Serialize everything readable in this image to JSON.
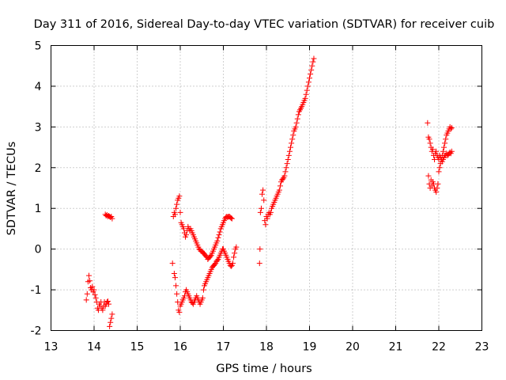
{
  "chart_data": {
    "type": "scatter",
    "title": "Day 311 of 2016, Sidereal Day-to-day VTEC variation (SDTVAR) for receiver cuib",
    "xlabel": "GPS time / hours",
    "ylabel": "SDTVAR / TECUs",
    "xlim": [
      13,
      23
    ],
    "ylim": [
      -2,
      5
    ],
    "xticks": [
      "13",
      "14",
      "15",
      "16",
      "17",
      "18",
      "19",
      "20",
      "21",
      "22",
      "23"
    ],
    "yticks": [
      "-2",
      "-1",
      "0",
      "1",
      "2",
      "3",
      "4",
      "5"
    ],
    "grid": true,
    "marker": "+",
    "series": [
      {
        "name": "SDTVAR",
        "color": "#ff0000",
        "points": [
          [
            13.82,
            -1.25
          ],
          [
            13.84,
            -1.1
          ],
          [
            13.86,
            -0.8
          ],
          [
            13.88,
            -0.65
          ],
          [
            13.9,
            -0.78
          ],
          [
            13.92,
            -0.95
          ],
          [
            13.94,
            -1.0
          ],
          [
            13.96,
            -0.92
          ],
          [
            13.98,
            -1.05
          ],
          [
            14.0,
            -1.0
          ],
          [
            14.02,
            -1.12
          ],
          [
            14.04,
            -1.2
          ],
          [
            14.06,
            -1.3
          ],
          [
            14.08,
            -1.45
          ],
          [
            14.1,
            -1.5
          ],
          [
            14.12,
            -1.35
          ],
          [
            14.14,
            -1.4
          ],
          [
            14.16,
            -1.3
          ],
          [
            14.18,
            -1.45
          ],
          [
            14.2,
            -1.5
          ],
          [
            14.22,
            -1.4
          ],
          [
            14.24,
            -1.3
          ],
          [
            14.26,
            -1.4
          ],
          [
            14.28,
            -1.35
          ],
          [
            14.3,
            -1.3
          ],
          [
            14.32,
            -1.28
          ],
          [
            14.34,
            -1.35
          ],
          [
            14.36,
            -1.9
          ],
          [
            14.38,
            -1.8
          ],
          [
            14.4,
            -1.7
          ],
          [
            14.42,
            -1.6
          ],
          [
            14.26,
            0.85
          ],
          [
            14.28,
            0.82
          ],
          [
            14.3,
            0.84
          ],
          [
            14.32,
            0.8
          ],
          [
            14.34,
            0.82
          ],
          [
            14.36,
            0.8
          ],
          [
            14.38,
            0.78
          ],
          [
            14.4,
            0.8
          ],
          [
            14.42,
            0.75
          ],
          [
            15.82,
            -0.35
          ],
          [
            15.84,
            0.8
          ],
          [
            15.86,
            0.9
          ],
          [
            15.88,
            0.85
          ],
          [
            15.9,
            1.0
          ],
          [
            15.92,
            1.1
          ],
          [
            15.94,
            1.2
          ],
          [
            15.96,
            1.25
          ],
          [
            15.98,
            1.3
          ],
          [
            16.0,
            0.9
          ],
          [
            16.02,
            0.65
          ],
          [
            16.04,
            0.6
          ],
          [
            16.06,
            0.55
          ],
          [
            16.08,
            0.5
          ],
          [
            16.1,
            0.4
          ],
          [
            16.12,
            0.3
          ],
          [
            16.14,
            0.35
          ],
          [
            16.16,
            0.45
          ],
          [
            16.18,
            0.55
          ],
          [
            16.2,
            0.5
          ],
          [
            16.22,
            0.45
          ],
          [
            16.24,
            0.5
          ],
          [
            16.26,
            0.45
          ],
          [
            16.28,
            0.4
          ],
          [
            16.3,
            0.35
          ],
          [
            16.32,
            0.3
          ],
          [
            16.34,
            0.25
          ],
          [
            16.36,
            0.2
          ],
          [
            16.38,
            0.15
          ],
          [
            16.4,
            0.1
          ],
          [
            16.42,
            0.05
          ],
          [
            16.44,
            0.0
          ],
          [
            16.46,
            -0.02
          ],
          [
            16.48,
            -0.05
          ],
          [
            16.5,
            -0.05
          ],
          [
            16.52,
            -0.08
          ],
          [
            16.54,
            -0.1
          ],
          [
            16.56,
            -0.12
          ],
          [
            16.58,
            -0.15
          ],
          [
            16.6,
            -0.18
          ],
          [
            16.62,
            -0.2
          ],
          [
            16.64,
            -0.25
          ],
          [
            16.66,
            -0.22
          ],
          [
            16.68,
            -0.2
          ],
          [
            16.7,
            -0.18
          ],
          [
            16.72,
            -0.15
          ],
          [
            16.74,
            -0.1
          ],
          [
            16.76,
            -0.05
          ],
          [
            16.78,
            0.0
          ],
          [
            16.8,
            0.05
          ],
          [
            16.82,
            0.1
          ],
          [
            16.84,
            0.15
          ],
          [
            16.86,
            0.2
          ],
          [
            16.88,
            0.28
          ],
          [
            16.9,
            0.35
          ],
          [
            16.92,
            0.42
          ],
          [
            16.94,
            0.5
          ],
          [
            16.96,
            0.55
          ],
          [
            16.98,
            0.6
          ],
          [
            17.0,
            0.65
          ],
          [
            17.02,
            0.7
          ],
          [
            17.04,
            0.75
          ],
          [
            17.06,
            0.78
          ],
          [
            17.08,
            0.8
          ],
          [
            17.1,
            0.78
          ],
          [
            17.12,
            0.8
          ],
          [
            17.14,
            0.8
          ],
          [
            17.16,
            0.78
          ],
          [
            17.18,
            0.76
          ],
          [
            17.2,
            0.75
          ],
          [
            15.86,
            -0.6
          ],
          [
            15.88,
            -0.7
          ],
          [
            15.9,
            -0.9
          ],
          [
            15.92,
            -1.1
          ],
          [
            15.94,
            -1.3
          ],
          [
            15.96,
            -1.5
          ],
          [
            15.98,
            -1.55
          ],
          [
            16.0,
            -1.4
          ],
          [
            16.02,
            -1.35
          ],
          [
            16.04,
            -1.3
          ],
          [
            16.06,
            -1.25
          ],
          [
            16.08,
            -1.2
          ],
          [
            16.1,
            -1.15
          ],
          [
            16.12,
            -1.05
          ],
          [
            16.14,
            -1.0
          ],
          [
            16.16,
            -1.05
          ],
          [
            16.18,
            -1.1
          ],
          [
            16.2,
            -1.15
          ],
          [
            16.22,
            -1.2
          ],
          [
            16.24,
            -1.25
          ],
          [
            16.26,
            -1.3
          ],
          [
            16.28,
            -1.32
          ],
          [
            16.3,
            -1.35
          ],
          [
            16.32,
            -1.3
          ],
          [
            16.34,
            -1.25
          ],
          [
            16.36,
            -1.2
          ],
          [
            16.38,
            -1.15
          ],
          [
            16.4,
            -1.2
          ],
          [
            16.42,
            -1.25
          ],
          [
            16.44,
            -1.3
          ],
          [
            16.46,
            -1.35
          ],
          [
            16.48,
            -1.3
          ],
          [
            16.5,
            -1.25
          ],
          [
            16.52,
            -1.2
          ],
          [
            16.54,
            -1.0
          ],
          [
            16.56,
            -0.9
          ],
          [
            16.58,
            -0.85
          ],
          [
            16.6,
            -0.8
          ],
          [
            16.62,
            -0.75
          ],
          [
            16.64,
            -0.7
          ],
          [
            16.66,
            -0.65
          ],
          [
            16.68,
            -0.6
          ],
          [
            16.7,
            -0.55
          ],
          [
            16.72,
            -0.5
          ],
          [
            16.74,
            -0.45
          ],
          [
            16.76,
            -0.42
          ],
          [
            16.78,
            -0.4
          ],
          [
            16.8,
            -0.38
          ],
          [
            16.82,
            -0.35
          ],
          [
            16.84,
            -0.3
          ],
          [
            16.86,
            -0.28
          ],
          [
            16.88,
            -0.25
          ],
          [
            16.9,
            -0.2
          ],
          [
            16.92,
            -0.15
          ],
          [
            16.94,
            -0.1
          ],
          [
            16.96,
            -0.05
          ],
          [
            16.98,
            0.0
          ],
          [
            17.0,
            0.0
          ],
          [
            17.02,
            -0.05
          ],
          [
            17.04,
            -0.1
          ],
          [
            17.06,
            -0.15
          ],
          [
            17.08,
            -0.2
          ],
          [
            17.1,
            -0.25
          ],
          [
            17.12,
            -0.3
          ],
          [
            17.14,
            -0.35
          ],
          [
            17.16,
            -0.4
          ],
          [
            17.18,
            -0.42
          ],
          [
            17.2,
            -0.4
          ],
          [
            17.22,
            -0.35
          ],
          [
            17.24,
            -0.2
          ],
          [
            17.26,
            -0.1
          ],
          [
            17.28,
            0.0
          ],
          [
            17.3,
            0.05
          ],
          [
            17.84,
            -0.35
          ],
          [
            17.85,
            0.0
          ],
          [
            17.86,
            0.9
          ],
          [
            17.88,
            1.0
          ],
          [
            17.9,
            1.35
          ],
          [
            17.92,
            1.45
          ],
          [
            17.94,
            1.2
          ],
          [
            17.96,
            0.7
          ],
          [
            17.98,
            0.6
          ],
          [
            18.0,
            0.8
          ],
          [
            18.02,
            0.75
          ],
          [
            18.04,
            0.85
          ],
          [
            18.06,
            0.9
          ],
          [
            18.08,
            0.85
          ],
          [
            18.1,
            0.9
          ],
          [
            18.12,
            1.0
          ],
          [
            18.14,
            1.05
          ],
          [
            18.16,
            1.1
          ],
          [
            18.18,
            1.15
          ],
          [
            18.2,
            1.2
          ],
          [
            18.22,
            1.25
          ],
          [
            18.24,
            1.3
          ],
          [
            18.26,
            1.35
          ],
          [
            18.28,
            1.4
          ],
          [
            18.3,
            1.45
          ],
          [
            18.32,
            1.55
          ],
          [
            18.34,
            1.65
          ],
          [
            18.36,
            1.7
          ],
          [
            18.38,
            1.72
          ],
          [
            18.4,
            1.75
          ],
          [
            18.42,
            1.8
          ],
          [
            18.44,
            1.9
          ],
          [
            18.46,
            2.0
          ],
          [
            18.48,
            2.1
          ],
          [
            18.5,
            2.2
          ],
          [
            18.52,
            2.3
          ],
          [
            18.54,
            2.4
          ],
          [
            18.56,
            2.5
          ],
          [
            18.58,
            2.6
          ],
          [
            18.6,
            2.7
          ],
          [
            18.62,
            2.8
          ],
          [
            18.64,
            2.9
          ],
          [
            18.66,
            2.95
          ],
          [
            18.68,
            3.0
          ],
          [
            18.7,
            3.1
          ],
          [
            18.72,
            3.2
          ],
          [
            18.74,
            3.3
          ],
          [
            18.76,
            3.38
          ],
          [
            18.78,
            3.42
          ],
          [
            18.8,
            3.46
          ],
          [
            18.82,
            3.5
          ],
          [
            18.84,
            3.55
          ],
          [
            18.86,
            3.6
          ],
          [
            18.88,
            3.65
          ],
          [
            18.9,
            3.7
          ],
          [
            18.92,
            3.8
          ],
          [
            18.94,
            3.9
          ],
          [
            18.96,
            4.0
          ],
          [
            18.98,
            4.1
          ],
          [
            19.0,
            4.2
          ],
          [
            19.02,
            4.3
          ],
          [
            19.04,
            4.4
          ],
          [
            19.06,
            4.5
          ],
          [
            19.08,
            4.6
          ],
          [
            19.1,
            4.68
          ],
          [
            21.74,
            3.1
          ],
          [
            21.76,
            2.75
          ],
          [
            21.78,
            2.7
          ],
          [
            21.8,
            2.6
          ],
          [
            21.82,
            2.5
          ],
          [
            21.84,
            2.4
          ],
          [
            21.86,
            2.45
          ],
          [
            21.88,
            2.3
          ],
          [
            21.9,
            2.2
          ],
          [
            21.92,
            2.35
          ],
          [
            21.94,
            2.4
          ],
          [
            21.96,
            2.3
          ],
          [
            21.98,
            2.25
          ],
          [
            22.0,
            2.2
          ],
          [
            22.02,
            2.3
          ],
          [
            22.04,
            2.25
          ],
          [
            22.06,
            2.2
          ],
          [
            22.08,
            2.3
          ],
          [
            22.1,
            2.4
          ],
          [
            22.12,
            2.5
          ],
          [
            22.14,
            2.6
          ],
          [
            22.16,
            2.7
          ],
          [
            22.18,
            2.8
          ],
          [
            22.2,
            2.85
          ],
          [
            22.22,
            2.9
          ],
          [
            22.24,
            2.95
          ],
          [
            22.26,
            3.0
          ],
          [
            22.28,
            2.95
          ],
          [
            22.3,
            2.98
          ],
          [
            21.76,
            1.8
          ],
          [
            21.78,
            1.6
          ],
          [
            21.8,
            1.5
          ],
          [
            21.82,
            1.7
          ],
          [
            21.84,
            1.55
          ],
          [
            21.86,
            1.65
          ],
          [
            21.88,
            1.6
          ],
          [
            21.9,
            1.5
          ],
          [
            21.92,
            1.45
          ],
          [
            21.94,
            1.4
          ],
          [
            21.96,
            1.5
          ],
          [
            21.98,
            1.6
          ],
          [
            22.0,
            1.9
          ],
          [
            22.02,
            2.0
          ],
          [
            22.04,
            2.1
          ],
          [
            22.06,
            2.2
          ],
          [
            22.08,
            2.15
          ],
          [
            22.1,
            2.2
          ],
          [
            22.12,
            2.25
          ],
          [
            22.14,
            2.3
          ],
          [
            22.16,
            2.3
          ],
          [
            22.18,
            2.35
          ],
          [
            22.2,
            2.3
          ],
          [
            22.22,
            2.32
          ],
          [
            22.24,
            2.35
          ],
          [
            22.26,
            2.38
          ],
          [
            22.28,
            2.35
          ],
          [
            22.3,
            2.4
          ]
        ]
      }
    ]
  }
}
